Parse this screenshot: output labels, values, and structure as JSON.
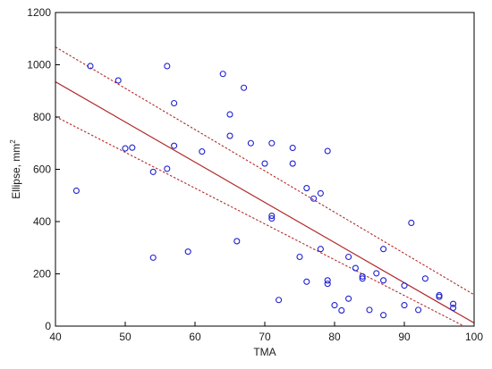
{
  "chart_data": {
    "type": "scatter",
    "xlabel": "TMA",
    "ylabel": "Ellipse, mm",
    "ylabel_superscript": "2",
    "xlim": [
      40,
      100
    ],
    "ylim": [
      0,
      1200
    ],
    "x_ticks": [
      40,
      50,
      60,
      70,
      80,
      90,
      100
    ],
    "y_ticks": [
      0,
      200,
      400,
      600,
      800,
      1000,
      1200
    ],
    "grid": false,
    "marker": "open-circle",
    "colors": {
      "points": "#1f1fd0",
      "fit_line": "#b22a2a",
      "confidence_band": "#b22a2a",
      "axes": "#000000"
    },
    "points": [
      {
        "x": 43,
        "y": 518
      },
      {
        "x": 45,
        "y": 995
      },
      {
        "x": 49,
        "y": 940
      },
      {
        "x": 50,
        "y": 680
      },
      {
        "x": 51,
        "y": 683
      },
      {
        "x": 54,
        "y": 590
      },
      {
        "x": 54,
        "y": 262
      },
      {
        "x": 56,
        "y": 995
      },
      {
        "x": 56,
        "y": 602
      },
      {
        "x": 57,
        "y": 853
      },
      {
        "x": 57,
        "y": 690
      },
      {
        "x": 59,
        "y": 285
      },
      {
        "x": 61,
        "y": 668
      },
      {
        "x": 64,
        "y": 965
      },
      {
        "x": 65,
        "y": 810
      },
      {
        "x": 65,
        "y": 728
      },
      {
        "x": 66,
        "y": 325
      },
      {
        "x": 67,
        "y": 912
      },
      {
        "x": 68,
        "y": 700
      },
      {
        "x": 70,
        "y": 622
      },
      {
        "x": 71,
        "y": 700
      },
      {
        "x": 71,
        "y": 422
      },
      {
        "x": 71,
        "y": 412
      },
      {
        "x": 72,
        "y": 100
      },
      {
        "x": 74,
        "y": 682
      },
      {
        "x": 74,
        "y": 622
      },
      {
        "x": 75,
        "y": 265
      },
      {
        "x": 76,
        "y": 528
      },
      {
        "x": 76,
        "y": 170
      },
      {
        "x": 77,
        "y": 488
      },
      {
        "x": 78,
        "y": 508
      },
      {
        "x": 78,
        "y": 295
      },
      {
        "x": 79,
        "y": 670
      },
      {
        "x": 79,
        "y": 175
      },
      {
        "x": 79,
        "y": 162
      },
      {
        "x": 80,
        "y": 80
      },
      {
        "x": 81,
        "y": 60
      },
      {
        "x": 82,
        "y": 265
      },
      {
        "x": 82,
        "y": 105
      },
      {
        "x": 83,
        "y": 222
      },
      {
        "x": 84,
        "y": 190
      },
      {
        "x": 84,
        "y": 182
      },
      {
        "x": 85,
        "y": 62
      },
      {
        "x": 86,
        "y": 202
      },
      {
        "x": 87,
        "y": 295
      },
      {
        "x": 87,
        "y": 175
      },
      {
        "x": 87,
        "y": 42
      },
      {
        "x": 90,
        "y": 155
      },
      {
        "x": 90,
        "y": 80
      },
      {
        "x": 91,
        "y": 395
      },
      {
        "x": 92,
        "y": 62
      },
      {
        "x": 93,
        "y": 182
      },
      {
        "x": 95,
        "y": 118
      },
      {
        "x": 95,
        "y": 112
      },
      {
        "x": 97,
        "y": 85
      },
      {
        "x": 97,
        "y": 70
      }
    ],
    "fit_line": {
      "x": [
        40,
        100
      ],
      "y": [
        935,
        12
      ]
    },
    "confidence_upper": {
      "x": [
        40,
        100
      ],
      "y": [
        1068,
        120
      ]
    },
    "confidence_lower": {
      "x": [
        40,
        100
      ],
      "y": [
        802,
        -20
      ]
    }
  }
}
